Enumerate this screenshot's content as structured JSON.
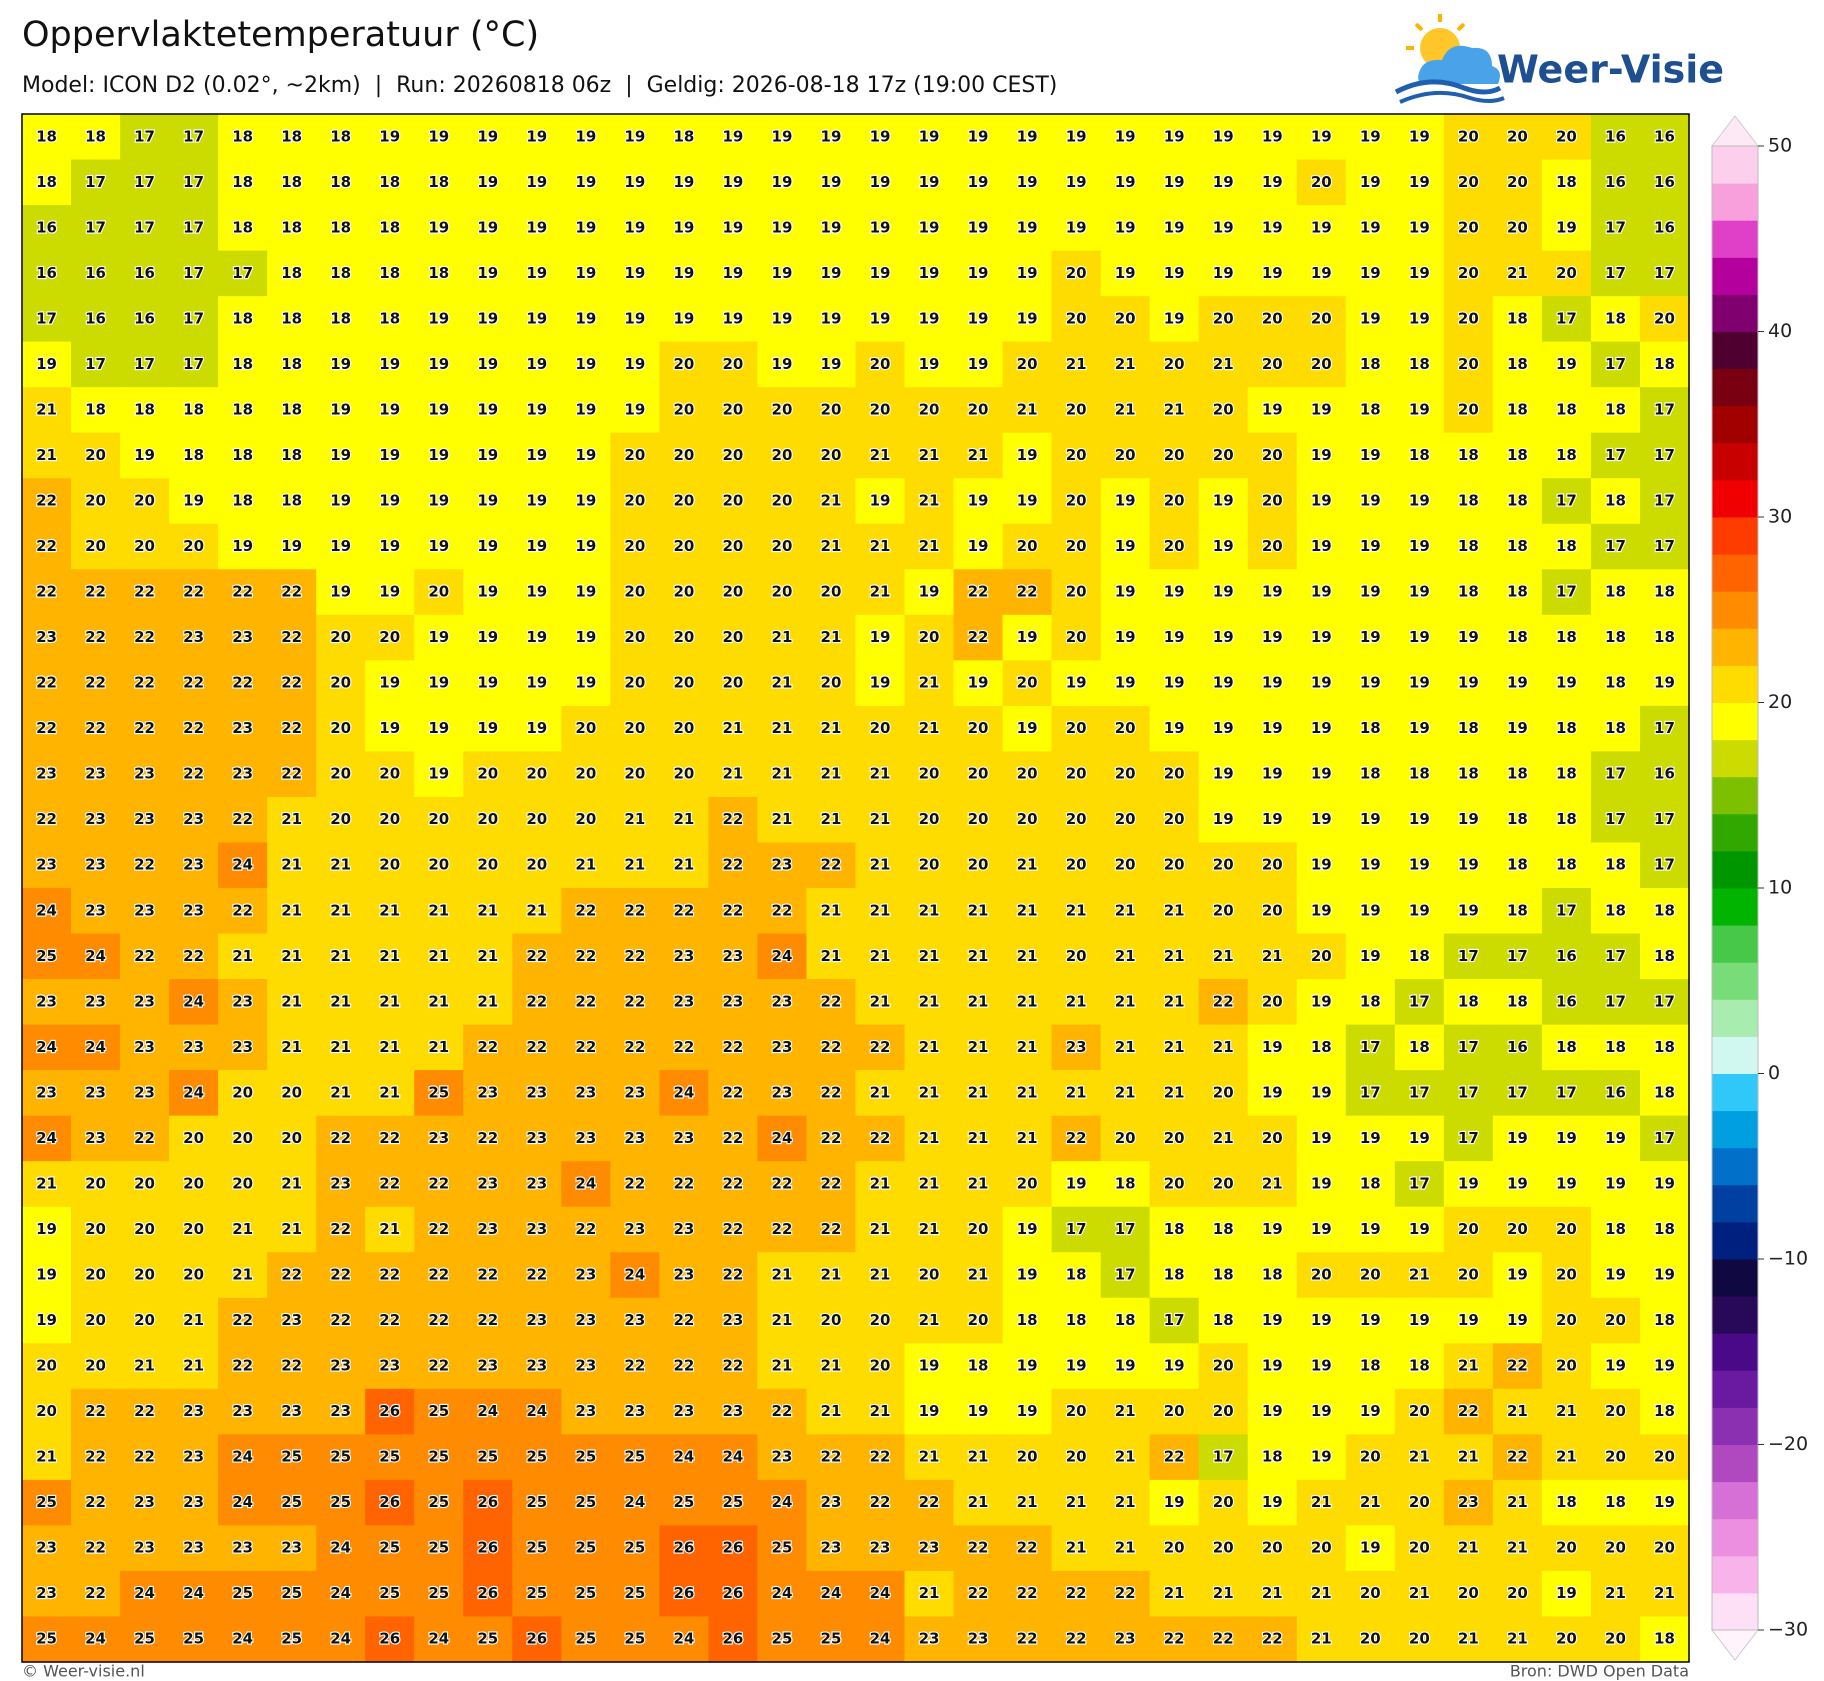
{
  "header": {
    "title": "Oppervlaktetemperatuur (°C)",
    "subtitle": "Model: ICON D2 (0.02°, ~2km)  |  Run: 20260818 06z  |  Geldig: 2026-08-18 17z (19:00 CEST)"
  },
  "logo": {
    "text": "Weer-Visie"
  },
  "map": {
    "rows": [
      [
        18,
        18,
        17,
        17,
        18,
        18,
        18,
        19,
        19,
        19,
        19,
        19,
        19,
        18,
        19,
        19,
        19,
        19,
        19,
        19,
        19,
        19,
        19,
        19,
        19,
        19,
        19,
        19,
        19,
        20,
        20,
        20,
        16,
        16
      ],
      [
        18,
        17,
        17,
        17,
        18,
        18,
        18,
        18,
        18,
        19,
        19,
        19,
        19,
        19,
        19,
        19,
        19,
        19,
        19,
        19,
        19,
        19,
        19,
        19,
        19,
        19,
        20,
        19,
        19,
        20,
        20,
        18,
        16,
        16
      ],
      [
        16,
        17,
        17,
        17,
        18,
        18,
        18,
        18,
        19,
        19,
        19,
        19,
        19,
        19,
        19,
        19,
        19,
        19,
        19,
        19,
        19,
        19,
        19,
        19,
        19,
        19,
        19,
        19,
        19,
        20,
        20,
        19,
        17,
        16
      ],
      [
        16,
        16,
        16,
        17,
        17,
        18,
        18,
        18,
        18,
        19,
        19,
        19,
        19,
        19,
        19,
        19,
        19,
        19,
        19,
        19,
        19,
        20,
        19,
        19,
        19,
        19,
        19,
        19,
        19,
        20,
        21,
        20,
        17,
        17
      ],
      [
        17,
        16,
        16,
        17,
        18,
        18,
        18,
        18,
        19,
        19,
        19,
        19,
        19,
        19,
        19,
        19,
        19,
        19,
        19,
        19,
        19,
        20,
        20,
        19,
        20,
        20,
        20,
        19,
        19,
        20,
        18,
        17,
        18,
        20
      ],
      [
        19,
        17,
        17,
        17,
        18,
        18,
        19,
        19,
        19,
        19,
        19,
        19,
        19,
        20,
        20,
        19,
        19,
        20,
        19,
        19,
        20,
        21,
        21,
        20,
        21,
        20,
        20,
        18,
        18,
        20,
        18,
        19,
        17,
        18
      ],
      [
        21,
        18,
        18,
        18,
        18,
        18,
        19,
        19,
        19,
        19,
        19,
        19,
        19,
        20,
        20,
        20,
        20,
        20,
        20,
        20,
        21,
        20,
        21,
        21,
        20,
        19,
        19,
        18,
        19,
        20,
        18,
        18,
        18,
        17
      ],
      [
        21,
        20,
        19,
        18,
        18,
        18,
        19,
        19,
        19,
        19,
        19,
        19,
        20,
        20,
        20,
        20,
        20,
        21,
        21,
        21,
        19,
        20,
        20,
        20,
        20,
        20,
        19,
        19,
        18,
        18,
        18,
        18,
        17,
        17
      ],
      [
        22,
        20,
        20,
        19,
        18,
        18,
        19,
        19,
        19,
        19,
        19,
        19,
        20,
        20,
        20,
        20,
        21,
        19,
        21,
        19,
        19,
        20,
        19,
        20,
        19,
        20,
        19,
        19,
        19,
        18,
        18,
        17,
        18,
        17
      ],
      [
        22,
        20,
        20,
        20,
        19,
        19,
        19,
        19,
        19,
        19,
        19,
        19,
        20,
        20,
        20,
        20,
        21,
        21,
        21,
        19,
        20,
        20,
        19,
        20,
        19,
        20,
        19,
        19,
        19,
        18,
        18,
        18,
        17,
        17
      ],
      [
        22,
        22,
        22,
        22,
        22,
        22,
        19,
        19,
        20,
        19,
        19,
        19,
        20,
        20,
        20,
        20,
        20,
        21,
        19,
        22,
        22,
        20,
        19,
        19,
        19,
        19,
        19,
        19,
        19,
        18,
        18,
        17,
        18,
        18
      ],
      [
        23,
        22,
        22,
        23,
        23,
        22,
        20,
        20,
        19,
        19,
        19,
        19,
        20,
        20,
        20,
        21,
        21,
        19,
        20,
        22,
        19,
        20,
        19,
        19,
        19,
        19,
        19,
        19,
        19,
        19,
        18,
        18,
        18,
        18
      ],
      [
        22,
        22,
        22,
        22,
        22,
        22,
        20,
        19,
        19,
        19,
        19,
        19,
        20,
        20,
        20,
        21,
        20,
        19,
        21,
        19,
        20,
        19,
        19,
        19,
        19,
        19,
        19,
        19,
        19,
        19,
        19,
        19,
        18,
        19
      ],
      [
        22,
        22,
        22,
        22,
        23,
        22,
        20,
        19,
        19,
        19,
        19,
        20,
        20,
        20,
        21,
        21,
        21,
        20,
        21,
        20,
        19,
        20,
        20,
        19,
        19,
        19,
        19,
        18,
        19,
        18,
        19,
        18,
        18,
        17
      ],
      [
        23,
        23,
        23,
        22,
        23,
        22,
        20,
        20,
        19,
        20,
        20,
        20,
        20,
        20,
        21,
        21,
        21,
        21,
        20,
        20,
        20,
        20,
        20,
        20,
        19,
        19,
        19,
        18,
        18,
        18,
        18,
        18,
        17,
        16
      ],
      [
        22,
        23,
        23,
        23,
        22,
        21,
        20,
        20,
        20,
        20,
        20,
        20,
        21,
        21,
        22,
        21,
        21,
        21,
        20,
        20,
        20,
        20,
        20,
        20,
        19,
        19,
        19,
        19,
        19,
        19,
        18,
        18,
        17,
        17
      ],
      [
        23,
        23,
        22,
        23,
        24,
        21,
        21,
        20,
        20,
        20,
        20,
        21,
        21,
        21,
        22,
        23,
        22,
        21,
        20,
        20,
        21,
        20,
        20,
        20,
        20,
        20,
        19,
        19,
        19,
        19,
        18,
        18,
        18,
        17
      ],
      [
        24,
        23,
        23,
        23,
        22,
        21,
        21,
        21,
        21,
        21,
        21,
        22,
        22,
        22,
        22,
        22,
        21,
        21,
        21,
        21,
        21,
        21,
        21,
        21,
        20,
        20,
        19,
        19,
        19,
        19,
        18,
        17,
        18,
        18
      ],
      [
        25,
        24,
        22,
        22,
        21,
        21,
        21,
        21,
        21,
        21,
        22,
        22,
        22,
        23,
        23,
        24,
        21,
        21,
        21,
        21,
        21,
        20,
        21,
        21,
        21,
        21,
        20,
        19,
        18,
        17,
        17,
        16,
        17,
        18
      ],
      [
        23,
        23,
        23,
        24,
        23,
        21,
        21,
        21,
        21,
        21,
        22,
        22,
        22,
        23,
        23,
        23,
        22,
        21,
        21,
        21,
        21,
        21,
        21,
        21,
        22,
        20,
        19,
        18,
        17,
        18,
        18,
        16,
        17,
        17
      ],
      [
        24,
        24,
        23,
        23,
        23,
        21,
        21,
        21,
        21,
        22,
        22,
        22,
        22,
        22,
        22,
        23,
        22,
        22,
        21,
        21,
        21,
        23,
        21,
        21,
        21,
        19,
        18,
        17,
        18,
        17,
        16,
        18,
        18,
        18
      ],
      [
        23,
        23,
        23,
        24,
        20,
        20,
        21,
        21,
        25,
        23,
        23,
        23,
        23,
        24,
        22,
        23,
        22,
        21,
        21,
        21,
        21,
        21,
        21,
        21,
        20,
        19,
        19,
        17,
        17,
        17,
        17,
        17,
        16,
        18
      ],
      [
        24,
        23,
        22,
        20,
        20,
        20,
        22,
        22,
        23,
        22,
        23,
        23,
        23,
        23,
        22,
        24,
        22,
        22,
        21,
        21,
        21,
        22,
        20,
        20,
        21,
        20,
        19,
        19,
        19,
        17,
        19,
        19,
        19,
        17
      ],
      [
        21,
        20,
        20,
        20,
        20,
        21,
        23,
        22,
        22,
        23,
        23,
        24,
        22,
        22,
        22,
        22,
        22,
        21,
        21,
        21,
        20,
        19,
        18,
        20,
        20,
        21,
        19,
        18,
        17,
        19,
        19,
        19,
        19,
        19
      ],
      [
        19,
        20,
        20,
        20,
        21,
        21,
        22,
        21,
        22,
        23,
        23,
        22,
        23,
        23,
        22,
        22,
        22,
        21,
        21,
        20,
        19,
        17,
        17,
        18,
        18,
        19,
        19,
        19,
        19,
        20,
        20,
        20,
        18,
        18
      ],
      [
        19,
        20,
        20,
        20,
        21,
        22,
        22,
        22,
        22,
        22,
        22,
        23,
        24,
        23,
        22,
        21,
        21,
        21,
        20,
        21,
        19,
        18,
        17,
        18,
        18,
        18,
        20,
        20,
        21,
        20,
        19,
        20,
        19,
        19
      ],
      [
        19,
        20,
        20,
        21,
        22,
        23,
        22,
        22,
        22,
        22,
        23,
        23,
        23,
        22,
        23,
        21,
        20,
        20,
        21,
        20,
        18,
        18,
        18,
        17,
        18,
        19,
        19,
        19,
        19,
        19,
        19,
        20,
        20,
        18
      ],
      [
        20,
        20,
        21,
        21,
        22,
        22,
        23,
        23,
        22,
        23,
        23,
        23,
        22,
        22,
        22,
        21,
        21,
        20,
        19,
        18,
        19,
        19,
        19,
        19,
        20,
        19,
        19,
        18,
        18,
        21,
        22,
        20,
        19,
        19
      ],
      [
        20,
        22,
        22,
        23,
        23,
        23,
        23,
        26,
        25,
        24,
        24,
        23,
        23,
        23,
        23,
        22,
        21,
        21,
        19,
        19,
        19,
        20,
        21,
        20,
        20,
        19,
        19,
        19,
        20,
        22,
        21,
        21,
        20,
        18
      ],
      [
        21,
        22,
        22,
        23,
        24,
        25,
        25,
        25,
        25,
        25,
        25,
        25,
        25,
        24,
        24,
        23,
        22,
        22,
        21,
        21,
        20,
        20,
        21,
        22,
        17,
        18,
        19,
        20,
        21,
        21,
        22,
        21,
        20,
        20
      ],
      [
        25,
        22,
        23,
        23,
        24,
        25,
        25,
        26,
        25,
        26,
        25,
        25,
        24,
        25,
        25,
        24,
        23,
        22,
        22,
        21,
        21,
        21,
        21,
        19,
        20,
        19,
        21,
        21,
        20,
        23,
        21,
        18,
        18,
        19
      ],
      [
        23,
        22,
        23,
        23,
        23,
        23,
        24,
        25,
        25,
        26,
        25,
        25,
        25,
        26,
        26,
        25,
        23,
        23,
        23,
        22,
        22,
        21,
        21,
        20,
        20,
        20,
        20,
        19,
        20,
        21,
        21,
        20,
        20,
        20
      ],
      [
        23,
        22,
        24,
        24,
        25,
        25,
        24,
        25,
        25,
        26,
        25,
        25,
        25,
        26,
        26,
        24,
        24,
        24,
        21,
        22,
        22,
        22,
        22,
        21,
        21,
        21,
        21,
        20,
        21,
        20,
        20,
        19,
        21,
        21
      ],
      [
        25,
        24,
        25,
        25,
        24,
        25,
        24,
        26,
        24,
        25,
        26,
        25,
        25,
        24,
        26,
        25,
        25,
        24,
        23,
        23,
        22,
        22,
        23,
        22,
        22,
        22,
        21,
        20,
        20,
        21,
        21,
        20,
        20,
        18
      ]
    ]
  },
  "colorbar": {
    "lim": [
      -30,
      50
    ],
    "ticks": [
      50,
      40,
      30,
      20,
      10,
      0,
      {
        "value": -10,
        "label": "−10"
      },
      {
        "value": -20,
        "label": "−20"
      },
      {
        "value": -30,
        "label": "−30"
      }
    ],
    "colors": [
      "#fde0f6",
      "#f8b4ea",
      "#ec8fe0",
      "#d670d6",
      "#b048bf",
      "#8a30b0",
      "#6a1aa0",
      "#4a0a88",
      "#280858",
      "#100840",
      "#002080",
      "#0040a0",
      "#0070c8",
      "#00a0e0",
      "#30c8f8",
      "#d0f8f0",
      "#a8ecb0",
      "#78dc78",
      "#48c848",
      "#00b400",
      "#009600",
      "#30a800",
      "#7cc000",
      "#cddc00",
      "#ffff00",
      "#ffdc00",
      "#ffb400",
      "#ff8c00",
      "#ff6400",
      "#ff3c00",
      "#f00000",
      "#c80000",
      "#a00000",
      "#780010",
      "#500030",
      "#800070",
      "#b4009c",
      "#e040c8",
      "#f8a0dc",
      "#fcd0ec"
    ]
  },
  "footer": {
    "left": "© Weer-visie.nl",
    "right": "Bron: DWD Open Data"
  }
}
